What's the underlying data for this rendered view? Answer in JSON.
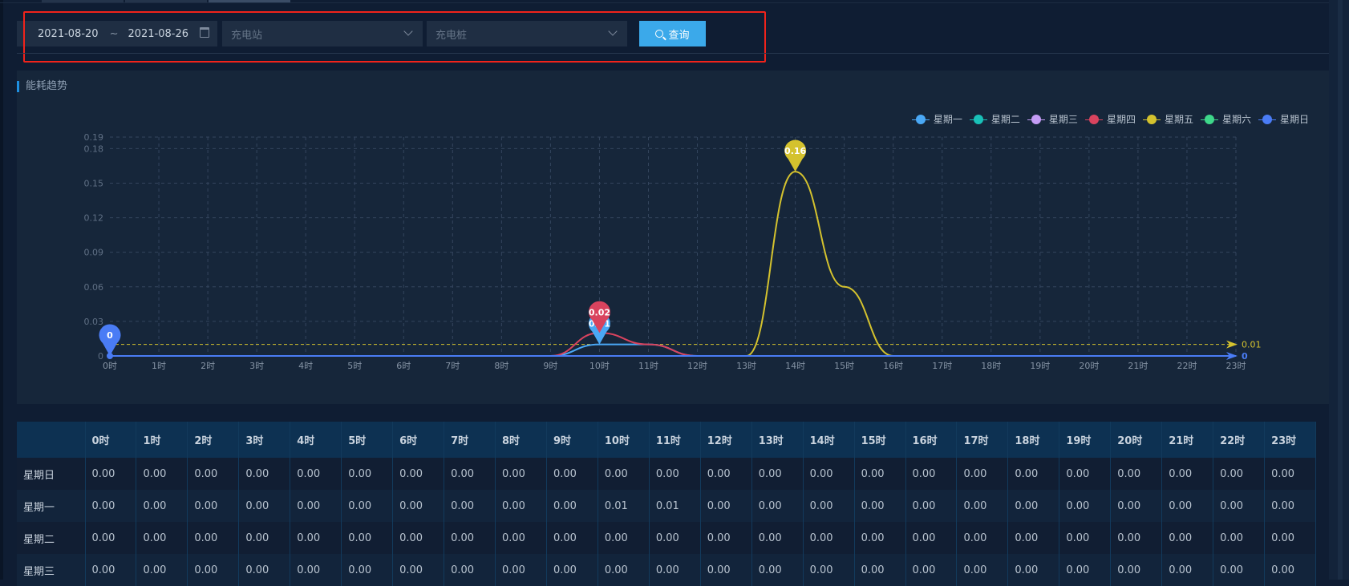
{
  "filters": {
    "start_date": "2021-08-20",
    "separator": "~",
    "end_date": "2021-08-26",
    "station_placeholder": "充电站",
    "pile_placeholder": "充电桩",
    "query_label": "查询"
  },
  "panel": {
    "title": "能耗趋势"
  },
  "chart_data": {
    "type": "line",
    "categories": [
      "0时",
      "1时",
      "2时",
      "3时",
      "4时",
      "5时",
      "6时",
      "7时",
      "8时",
      "9时",
      "10时",
      "11时",
      "12时",
      "13时",
      "14时",
      "15时",
      "16时",
      "17时",
      "18时",
      "19时",
      "20时",
      "21时",
      "22时",
      "23时"
    ],
    "yticks": [
      "0",
      "0.03",
      "0.06",
      "0.09",
      "0.12",
      "0.15",
      "0.18",
      "0.19"
    ],
    "ylim": [
      0,
      0.19
    ],
    "grid": true,
    "smooth": true,
    "legend_position": "top-right",
    "series": [
      {
        "name": "星期一",
        "color": "#4aa8f5",
        "values": [
          0,
          0,
          0,
          0,
          0,
          0,
          0,
          0,
          0,
          0,
          0.01,
          0.01,
          0,
          0,
          0,
          0,
          0,
          0,
          0,
          0,
          0,
          0,
          0,
          0
        ],
        "max_label": "0.01"
      },
      {
        "name": "星期二",
        "color": "#19c1b8",
        "values": [
          0,
          0,
          0,
          0,
          0,
          0,
          0,
          0,
          0,
          0,
          0,
          0,
          0,
          0,
          0,
          0,
          0,
          0,
          0,
          0,
          0,
          0,
          0,
          0
        ]
      },
      {
        "name": "星期三",
        "color": "#c49cf5",
        "values": [
          0,
          0,
          0,
          0,
          0,
          0,
          0,
          0,
          0,
          0,
          0,
          0,
          0,
          0,
          0,
          0,
          0,
          0,
          0,
          0,
          0,
          0,
          0,
          0
        ]
      },
      {
        "name": "星期四",
        "color": "#d9435e",
        "values": [
          0,
          0,
          0,
          0,
          0,
          0,
          0,
          0,
          0,
          0,
          0.02,
          0.01,
          0,
          0,
          0,
          0,
          0,
          0,
          0,
          0,
          0,
          0,
          0,
          0
        ],
        "max_label": "0.02"
      },
      {
        "name": "星期五",
        "color": "#d4c22e",
        "values": [
          0,
          0,
          0,
          0,
          0,
          0,
          0,
          0,
          0,
          0,
          0,
          0,
          0,
          0,
          0.16,
          0.06,
          0,
          0,
          0,
          0,
          0,
          0,
          0,
          0
        ],
        "max_label": "0.16",
        "avg_line": 0.01,
        "avg_label": "0.01"
      },
      {
        "name": "星期六",
        "color": "#3ed88a",
        "values": [
          0,
          0,
          0,
          0,
          0,
          0,
          0,
          0,
          0,
          0,
          0,
          0,
          0,
          0,
          0,
          0,
          0,
          0,
          0,
          0,
          0,
          0,
          0,
          0
        ]
      },
      {
        "name": "星期日",
        "color": "#4a7cf5",
        "values": [
          0,
          0,
          0,
          0,
          0,
          0,
          0,
          0,
          0,
          0,
          0,
          0,
          0,
          0,
          0,
          0,
          0,
          0,
          0,
          0,
          0,
          0,
          0,
          0
        ],
        "max_label": "0",
        "avg_line": 0,
        "avg_label": "0"
      }
    ]
  },
  "table": {
    "columns": [
      "0时",
      "1时",
      "2时",
      "3时",
      "4时",
      "5时",
      "6时",
      "7时",
      "8时",
      "9时",
      "10时",
      "11时",
      "12时",
      "13时",
      "14时",
      "15时",
      "16时",
      "17时",
      "18时",
      "19时",
      "20时",
      "21时",
      "22时",
      "23时"
    ],
    "rows": [
      {
        "label": "星期日",
        "values": [
          "0.00",
          "0.00",
          "0.00",
          "0.00",
          "0.00",
          "0.00",
          "0.00",
          "0.00",
          "0.00",
          "0.00",
          "0.00",
          "0.00",
          "0.00",
          "0.00",
          "0.00",
          "0.00",
          "0.00",
          "0.00",
          "0.00",
          "0.00",
          "0.00",
          "0.00",
          "0.00",
          "0.00"
        ]
      },
      {
        "label": "星期一",
        "values": [
          "0.00",
          "0.00",
          "0.00",
          "0.00",
          "0.00",
          "0.00",
          "0.00",
          "0.00",
          "0.00",
          "0.00",
          "0.01",
          "0.01",
          "0.00",
          "0.00",
          "0.00",
          "0.00",
          "0.00",
          "0.00",
          "0.00",
          "0.00",
          "0.00",
          "0.00",
          "0.00",
          "0.00"
        ]
      },
      {
        "label": "星期二",
        "values": [
          "0.00",
          "0.00",
          "0.00",
          "0.00",
          "0.00",
          "0.00",
          "0.00",
          "0.00",
          "0.00",
          "0.00",
          "0.00",
          "0.00",
          "0.00",
          "0.00",
          "0.00",
          "0.00",
          "0.00",
          "0.00",
          "0.00",
          "0.00",
          "0.00",
          "0.00",
          "0.00",
          "0.00"
        ]
      },
      {
        "label": "星期三",
        "values": [
          "0.00",
          "0.00",
          "0.00",
          "0.00",
          "0.00",
          "0.00",
          "0.00",
          "0.00",
          "0.00",
          "0.00",
          "0.00",
          "0.00",
          "0.00",
          "0.00",
          "0.00",
          "0.00",
          "0.00",
          "0.00",
          "0.00",
          "0.00",
          "0.00",
          "0.00",
          "0.00",
          "0.00"
        ]
      }
    ]
  }
}
